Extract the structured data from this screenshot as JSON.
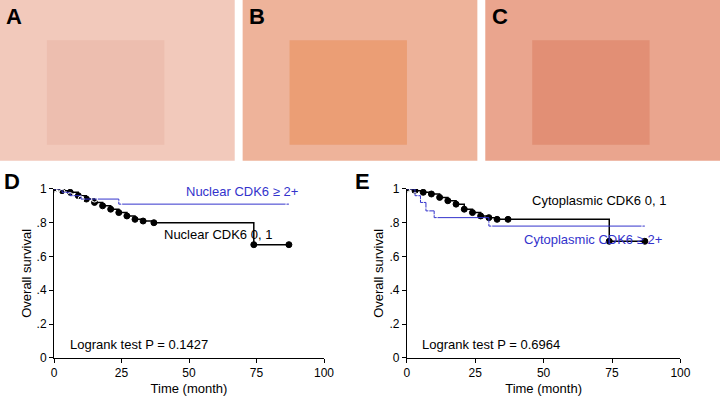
{
  "panels": [
    {
      "label": "A"
    },
    {
      "label": "B"
    },
    {
      "label": "C"
    }
  ],
  "chart_data": [
    {
      "type": "line",
      "title": "D",
      "xlabel": "Time (month)",
      "ylabel": "Overall survival",
      "line_style": "step",
      "grid": false,
      "xlim": [
        0,
        100
      ],
      "xticks": [
        0,
        25,
        50,
        75,
        100
      ],
      "ylim": [
        0,
        1
      ],
      "yticks": [
        0,
        {
          "value": 0.2,
          "label": ".2"
        },
        {
          "value": 0.4,
          "label": ".4"
        },
        {
          "value": 0.6,
          "label": ".6"
        },
        {
          "value": 0.8,
          "label": ".8"
        },
        1
      ],
      "annotations": [
        "Logrank test P = 0.1427"
      ],
      "series": [
        {
          "name": "Nuclear CDK6 0, 1",
          "color": "#000000",
          "marker": "circle",
          "x": [
            0,
            3,
            6,
            9,
            12,
            15,
            18,
            21,
            24,
            27,
            30,
            33,
            37,
            74,
            87
          ],
          "values": [
            1,
            0.99,
            0.98,
            0.96,
            0.94,
            0.92,
            0.9,
            0.88,
            0.86,
            0.84,
            0.82,
            0.81,
            0.8,
            0.67,
            0.67
          ]
        },
        {
          "name": "Nuclear CDK6 ≥ 2+",
          "color": "#3333cc",
          "marker": "circle-open",
          "x": [
            0,
            3,
            6,
            10,
            15,
            24,
            87
          ],
          "values": [
            1,
            0.98,
            0.96,
            0.94,
            0.94,
            0.91,
            0.91
          ]
        }
      ]
    },
    {
      "type": "line",
      "title": "E",
      "xlabel": "Time (month)",
      "ylabel": "Overall survival",
      "line_style": "step",
      "grid": false,
      "xlim": [
        0,
        100
      ],
      "xticks": [
        0,
        25,
        50,
        75,
        100
      ],
      "ylim": [
        0,
        1
      ],
      "yticks": [
        0,
        {
          "value": 0.2,
          "label": ".2"
        },
        {
          "value": 0.4,
          "label": ".4"
        },
        {
          "value": 0.6,
          "label": ".6"
        },
        {
          "value": 0.8,
          "label": ".8"
        },
        1
      ],
      "annotations": [
        "Logrank test P = 0.6964"
      ],
      "series": [
        {
          "name": "Cytoplasmic CDK6 0, 1",
          "color": "#000000",
          "marker": "circle",
          "x": [
            0,
            3,
            6,
            9,
            12,
            15,
            18,
            21,
            24,
            27,
            30,
            33,
            37,
            74,
            87
          ],
          "values": [
            1,
            0.99,
            0.98,
            0.97,
            0.95,
            0.93,
            0.91,
            0.88,
            0.86,
            0.84,
            0.83,
            0.82,
            0.82,
            0.69,
            0.69
          ]
        },
        {
          "name": "Cytoplasmic CDK6 ≥ 2+",
          "color": "#3333cc",
          "marker": "circle-open",
          "x": [
            0,
            3,
            5,
            7,
            10,
            30,
            87
          ],
          "values": [
            1,
            0.96,
            0.92,
            0.87,
            0.83,
            0.78,
            0.78
          ]
        }
      ]
    }
  ]
}
